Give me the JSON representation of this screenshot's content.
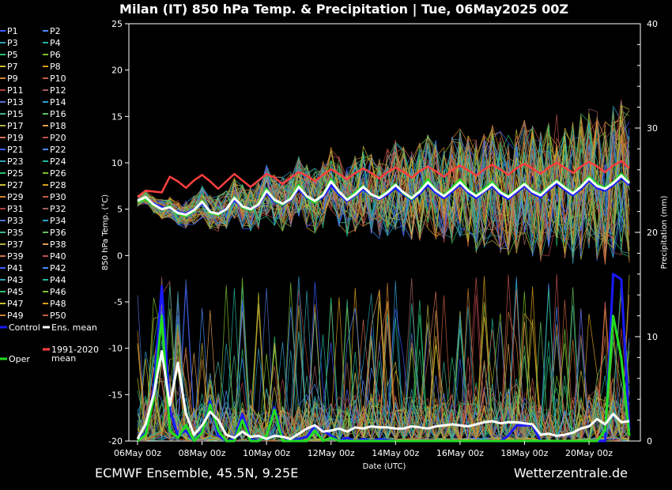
{
  "title": "Milan  (IT)  850 hPa Temp. & Precipitation | Tue, 06May2025 00Z",
  "footer_left": "ECMWF Ensemble, 45.5N, 9.25E",
  "footer_right": "Wetterzentrale.de",
  "chart_data": {
    "type": "line",
    "xlabel": "Date (UTC)",
    "ylabel_left": "850 hPa Temp. (°C)",
    "ylabel_right": "Precipitation (mm)",
    "ylim_left": [
      -20,
      25
    ],
    "ylim_right": [
      0,
      40
    ],
    "yticks_left": [
      "25",
      "20",
      "15",
      "10",
      "5",
      "0",
      "-5",
      "-10",
      "-15",
      "-20"
    ],
    "yticks_right": [
      "40",
      "30",
      "20",
      "10",
      "0"
    ],
    "xticks": [
      "06May 00z",
      "08May 00z",
      "10May 00z",
      "12May 00z",
      "14May 00z",
      "16May 00z",
      "18May 00z",
      "20May 00z"
    ],
    "x_start": "2025-05-06T00:00Z",
    "x_end": "2025-05-21T06:00Z",
    "x_step_hours": 6,
    "legend": [
      [
        "P1",
        "P2"
      ],
      [
        "P3",
        "P4"
      ],
      [
        "P5",
        "P6"
      ],
      [
        "P7",
        "P8"
      ],
      [
        "P9",
        "P10"
      ],
      [
        "P11",
        "P12"
      ],
      [
        "P13",
        "P14"
      ],
      [
        "P15",
        "P16"
      ],
      [
        "P17",
        "P18"
      ],
      [
        "P19",
        "P20"
      ],
      [
        "P21",
        "P22"
      ],
      [
        "P23",
        "P24"
      ],
      [
        "P25",
        "P26"
      ],
      [
        "P27",
        "P28"
      ],
      [
        "P29",
        "P30"
      ],
      [
        "P31",
        "P32"
      ],
      [
        "P33",
        "P34"
      ],
      [
        "P35",
        "P36"
      ],
      [
        "P37",
        "P38"
      ],
      [
        "P39",
        "P40"
      ],
      [
        "P41",
        "P42"
      ],
      [
        "P43",
        "P44"
      ],
      [
        "P45",
        "P46"
      ],
      [
        "P47",
        "P48"
      ],
      [
        "P49",
        "P50"
      ]
    ],
    "legend_special": [
      {
        "name": "Control",
        "color": "#1a1aff"
      },
      {
        "name": "Ens. mean",
        "color": "#ffffff"
      },
      {
        "name": "1991-2020 mean",
        "color": "#ff4040"
      },
      {
        "name": "Oper",
        "color": "#22dd22"
      }
    ],
    "member_colors": [
      "#3b5bff",
      "#4a8cff",
      "#2fa0b0",
      "#20b7a0",
      "#28c070",
      "#7cc030",
      "#c8c030",
      "#d8a020",
      "#d08030",
      "#c06040",
      "#b04040",
      "#a06060",
      "#5070d0",
      "#30a0d0",
      "#40b090",
      "#60c060",
      "#b0b040",
      "#e0a050",
      "#d07050",
      "#c05050"
    ],
    "series": [
      {
        "name": "1991-2020 mean",
        "temp": [
          6.3,
          7.0,
          6.9,
          6.8,
          8.5,
          8.0,
          7.3,
          8.1,
          8.7,
          8.0,
          7.2,
          8.0,
          8.8,
          8.1,
          7.4,
          8.1,
          8.8,
          8.4,
          7.7,
          8.4,
          9.0,
          8.6,
          8.0,
          8.7,
          9.3,
          8.8,
          8.2,
          8.9,
          9.4,
          8.9,
          8.3,
          9.0,
          9.5,
          9.0,
          8.4,
          9.1,
          9.6,
          9.1,
          8.5,
          9.2,
          9.7,
          9.2,
          8.6,
          9.3,
          9.8,
          9.3,
          8.7,
          9.4,
          9.9,
          9.4,
          8.8,
          9.5,
          10.0,
          9.5,
          8.9,
          9.6,
          10.1,
          9.6,
          9.0,
          9.7,
          10.2,
          9.4
        ]
      },
      {
        "name": "Ens. mean",
        "temp": [
          5.9,
          6.3,
          5.5,
          5.0,
          5.2,
          4.6,
          4.4,
          4.9,
          5.8,
          4.7,
          4.5,
          5.0,
          6.2,
          5.3,
          5.0,
          5.5,
          7.0,
          6.0,
          5.6,
          6.1,
          7.4,
          6.4,
          5.9,
          6.5,
          8.0,
          6.9,
          6.0,
          6.6,
          7.4,
          6.6,
          6.2,
          6.8,
          7.6,
          6.8,
          6.2,
          6.9,
          7.9,
          7.0,
          6.4,
          7.1,
          7.9,
          7.0,
          6.4,
          7.0,
          7.7,
          6.8,
          6.3,
          7.0,
          7.7,
          6.9,
          6.5,
          7.3,
          8.0,
          7.3,
          6.7,
          7.4,
          8.3,
          7.5,
          7.2,
          7.8,
          8.6,
          7.8
        ],
        "precip": [
          0.2,
          1.6,
          4.5,
          8.6,
          3.4,
          7.5,
          2.6,
          0.6,
          1.5,
          2.8,
          2.0,
          0.6,
          0.3,
          0.9,
          0.4,
          0.5,
          0.2,
          0.5,
          0.4,
          0.2,
          0.7,
          1.2,
          1.5,
          0.9,
          1.0,
          1.2,
          0.9,
          1.3,
          1.2,
          1.4,
          1.3,
          1.3,
          1.2,
          1.2,
          1.4,
          1.3,
          1.2,
          1.4,
          1.5,
          1.6,
          1.5,
          1.4,
          1.6,
          1.8,
          1.9,
          1.7,
          1.8,
          1.8,
          1.7,
          1.6,
          0.6,
          0.7,
          0.5,
          0.6,
          0.8,
          1.2,
          1.4,
          2.1,
          1.6,
          2.6,
          1.8,
          1.9
        ]
      },
      {
        "name": "Control",
        "temp": [
          5.9,
          6.2,
          5.6,
          5.2,
          5.1,
          4.7,
          4.5,
          5.0,
          5.6,
          4.7,
          4.5,
          5.1,
          6.0,
          5.2,
          5.0,
          5.4,
          6.8,
          5.8,
          5.5,
          6.0,
          7.2,
          6.2,
          5.8,
          6.3,
          7.6,
          6.6,
          5.9,
          6.5,
          7.2,
          6.5,
          6.1,
          6.6,
          7.3,
          6.6,
          6.0,
          6.7,
          7.6,
          6.8,
          6.2,
          6.9,
          7.7,
          6.8,
          6.2,
          6.9,
          7.5,
          6.6,
          6.1,
          6.8,
          7.5,
          6.7,
          6.3,
          7.1,
          7.8,
          7.1,
          6.5,
          7.2,
          8.1,
          7.3,
          7.0,
          7.6,
          8.4,
          7.6
        ],
        "precip": [
          0.0,
          0.8,
          5.0,
          14.8,
          3.0,
          0.5,
          1.0,
          0.0,
          1.0,
          3.8,
          0.5,
          0.0,
          0.2,
          2.6,
          0.2,
          0.0,
          0.5,
          3.2,
          0.4,
          0.0,
          0.2,
          0.4,
          1.5,
          1.0,
          0.5,
          0.0,
          0.3,
          0.0,
          0.2,
          0.0,
          0.2,
          0.1,
          0.0,
          0.0,
          0.0,
          0.0,
          0.0,
          0.0,
          0.0,
          0.0,
          0.0,
          0.0,
          0.0,
          0.0,
          0.0,
          0.0,
          0.5,
          1.5,
          1.5,
          1.5,
          0.0,
          0.0,
          0.0,
          0.0,
          0.0,
          0.0,
          0.0,
          0.0,
          0.0,
          16.0,
          15.5,
          1.0
        ]
      },
      {
        "name": "Oper",
        "temp": [
          5.8,
          6.1,
          5.4,
          5.0,
          5.3,
          4.5,
          4.3,
          4.8,
          5.9,
          4.6,
          4.4,
          5.0,
          6.3,
          5.2,
          4.9,
          5.6,
          7.2,
          5.9,
          5.5,
          6.2,
          7.6,
          6.3,
          5.7,
          6.6,
          8.2,
          6.8,
          6.1,
          6.8,
          7.5,
          6.5,
          6.3,
          6.9,
          7.7,
          6.7,
          6.1,
          7.0,
          8.2,
          7.0,
          6.5,
          7.3,
          8.2,
          7.1,
          6.5,
          7.2,
          7.9,
          6.9,
          6.4,
          7.1,
          7.8,
          7.0,
          6.6,
          7.4,
          8.1,
          7.4,
          6.8,
          7.5,
          8.5,
          7.7,
          7.3,
          7.9,
          8.8,
          7.9
        ],
        "precip": [
          0.0,
          0.6,
          4.0,
          12.0,
          1.0,
          0.3,
          1.5,
          0.0,
          0.8,
          3.5,
          1.0,
          0.0,
          0.0,
          2.0,
          0.0,
          0.0,
          0.5,
          3.0,
          0.0,
          0.0,
          0.0,
          0.0,
          1.0,
          0.0,
          0.3,
          0.0,
          0.0,
          0.0,
          0.0,
          0.0,
          0.0,
          0.0,
          0.0,
          0.0,
          0.0,
          0.0,
          0.0,
          0.0,
          0.0,
          0.0,
          0.0,
          0.0,
          0.0,
          0.0,
          0.0,
          0.0,
          0.0,
          0.0,
          0.0,
          0.0,
          0.0,
          0.0,
          0.0,
          0.0,
          0.0,
          0.0,
          0.0,
          0.0,
          1.0,
          12.0,
          8.0,
          0.5
        ]
      }
    ]
  }
}
